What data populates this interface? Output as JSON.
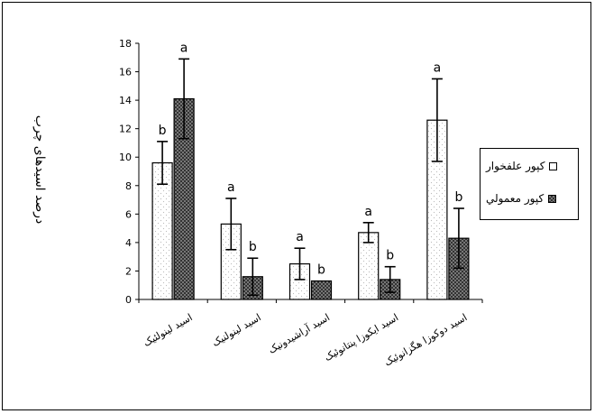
{
  "chart_data": {
    "type": "bar",
    "title": "",
    "xlabel": "",
    "ylabel": "درصد اسیدهای چرب",
    "ylim": [
      0,
      18
    ],
    "yticks": [
      0,
      2,
      4,
      6,
      8,
      10,
      12,
      14,
      16,
      18
    ],
    "categories": [
      "اسید لینولئیک",
      "اسید لینولنیک",
      "اسید آراشیدونیک",
      "اسید ایکوزا پنتانوئیک",
      "اسید دوکوزا هگزانوئیک"
    ],
    "series": [
      {
        "name": "کپور علفخوار",
        "values": [
          9.6,
          5.3,
          2.5,
          4.7,
          12.6
        ],
        "errors": [
          1.5,
          1.8,
          1.1,
          0.7,
          2.9
        ],
        "labels": [
          "b",
          "a",
          "a",
          "a",
          "a"
        ],
        "color": "#ffffff"
      },
      {
        "name": "کپور معمولي",
        "values": [
          14.1,
          1.6,
          1.3,
          1.4,
          4.3
        ],
        "errors": [
          2.8,
          1.3,
          0.0,
          0.9,
          2.1
        ],
        "labels": [
          "a",
          "b",
          "b",
          "b",
          "b"
        ],
        "color": "#777777"
      }
    ],
    "grid": false,
    "legend": "right"
  }
}
